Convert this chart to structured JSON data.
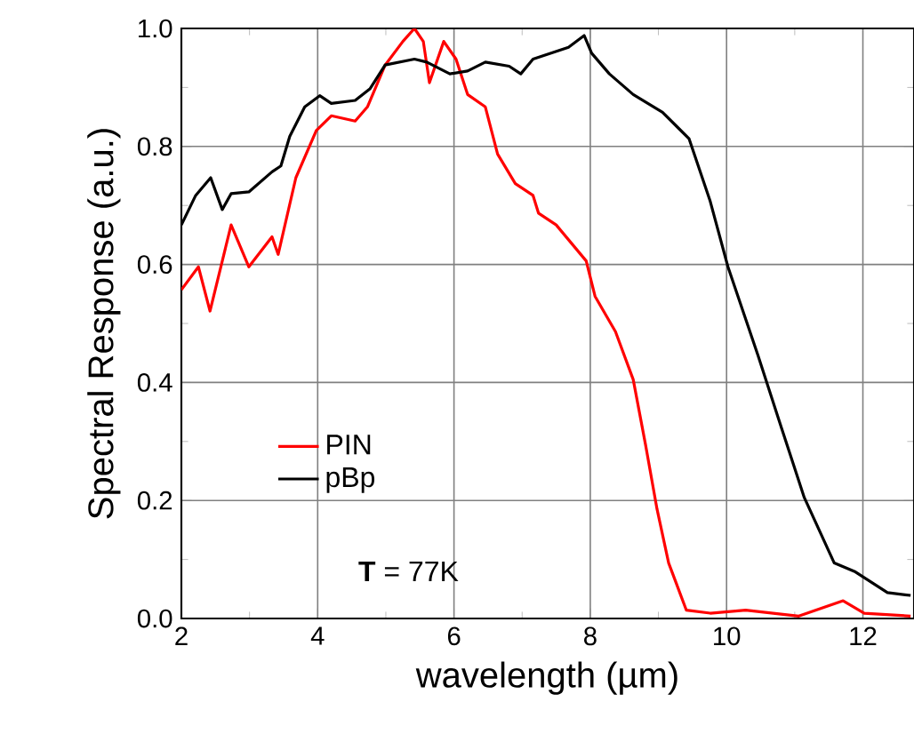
{
  "chart_data": {
    "type": "line",
    "xlabel": "wavelength (µm)",
    "ylabel": "Spectral Response (a.u.)",
    "xlim": [
      2,
      12.75
    ],
    "ylim": [
      0,
      1
    ],
    "xticks": [
      2,
      4,
      6,
      8,
      10,
      12
    ],
    "yticks": [
      {
        "value": 0,
        "label": "0.0"
      },
      0.2,
      0.4,
      0.6,
      0.8,
      {
        "value": 1,
        "label": "1.0"
      }
    ],
    "grid": true,
    "legend": "left",
    "line_style": "solid",
    "marker": "none",
    "annotations": [
      "**T** = 77K"
    ],
    "series": [
      {
        "name": "PIN",
        "color": "#ff0000",
        "x": [
          2.0,
          2.25,
          2.42,
          2.73,
          2.99,
          3.33,
          3.42,
          3.68,
          3.98,
          4.2,
          4.55,
          4.73,
          4.99,
          5.25,
          5.42,
          5.55,
          5.64,
          5.85,
          6.03,
          6.2,
          6.46,
          6.64,
          6.9,
          7.16,
          7.24,
          7.5,
          7.94,
          8.07,
          8.37,
          8.63,
          8.81,
          8.98,
          9.15,
          9.41,
          9.76,
          10.28,
          11.06,
          11.71,
          12.02,
          12.7
        ],
        "values": [
          0.557,
          0.596,
          0.521,
          0.667,
          0.596,
          0.647,
          0.617,
          0.747,
          0.827,
          0.852,
          0.843,
          0.867,
          0.938,
          0.978,
          1.0,
          0.978,
          0.908,
          0.978,
          0.948,
          0.888,
          0.867,
          0.787,
          0.737,
          0.717,
          0.687,
          0.667,
          0.606,
          0.546,
          0.486,
          0.405,
          0.295,
          0.185,
          0.094,
          0.014,
          0.009,
          0.014,
          0.004,
          0.03,
          0.009,
          0.004
        ]
      },
      {
        "name": "pBp",
        "color": "#000000",
        "x": [
          2.0,
          2.21,
          2.43,
          2.6,
          2.73,
          2.99,
          3.33,
          3.46,
          3.59,
          3.81,
          4.03,
          4.2,
          4.55,
          4.77,
          4.99,
          5.42,
          5.6,
          5.94,
          6.2,
          6.46,
          6.81,
          6.98,
          7.16,
          7.42,
          7.68,
          7.91,
          8.02,
          8.28,
          8.63,
          9.06,
          9.45,
          9.76,
          10.02,
          10.46,
          10.8,
          11.14,
          11.58,
          11.89,
          12.36,
          12.7
        ],
        "values": [
          0.667,
          0.717,
          0.747,
          0.693,
          0.72,
          0.723,
          0.757,
          0.767,
          0.817,
          0.867,
          0.886,
          0.873,
          0.878,
          0.898,
          0.938,
          0.948,
          0.943,
          0.923,
          0.928,
          0.943,
          0.936,
          0.923,
          0.948,
          0.958,
          0.968,
          0.988,
          0.958,
          0.923,
          0.888,
          0.858,
          0.813,
          0.707,
          0.596,
          0.446,
          0.325,
          0.205,
          0.094,
          0.079,
          0.044,
          0.039
        ]
      }
    ]
  }
}
